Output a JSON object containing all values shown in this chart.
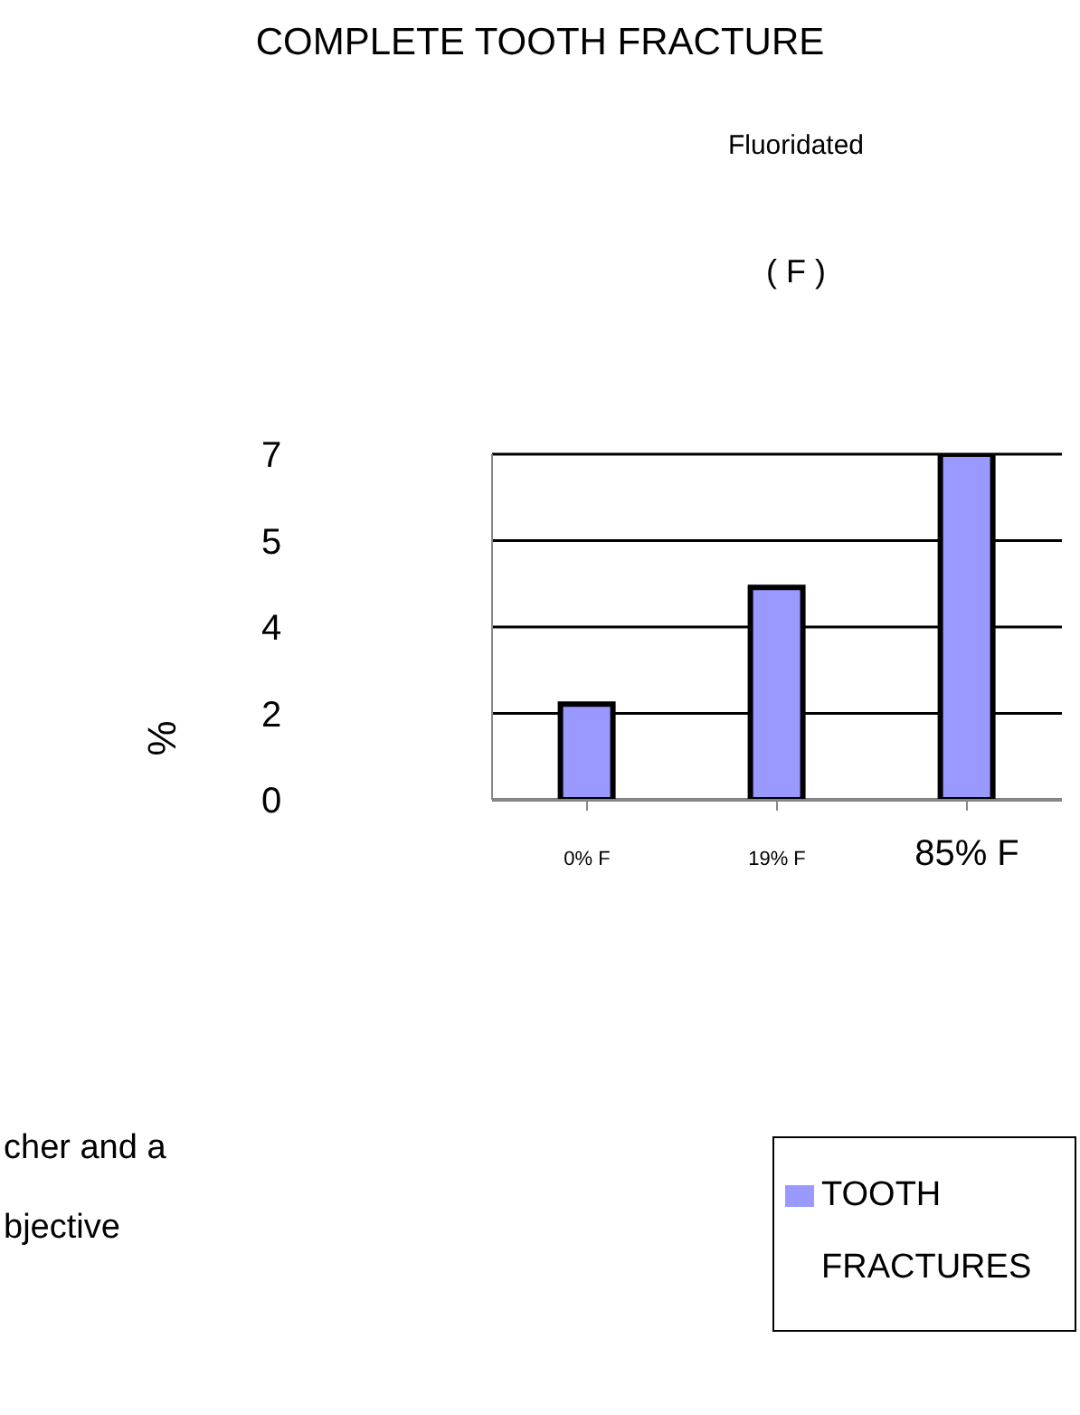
{
  "chart_data": {
    "type": "bar",
    "title": "COMPLETE TOOTH FRACTURE",
    "subtitle": "Fluoridated",
    "ylabel": "%",
    "categories": [
      "0% F",
      "19% F",
      "85% F"
    ],
    "series": [
      {
        "name": "TOOTH FRACTURES",
        "color": "#9999ff",
        "values": [
          1.94,
          4.3,
          7
        ]
      }
    ],
    "ylim": [
      0,
      7
    ],
    "yticks": [
      {
        "value": 0,
        "label": "0"
      },
      {
        "value": 1.75,
        "label": "2"
      },
      {
        "value": 3.5,
        "label": "4"
      },
      {
        "value": 5.25,
        "label": "5"
      },
      {
        "value": 7,
        "label": "7"
      }
    ],
    "grid": "y",
    "legend": "bottom right",
    "annotations": [
      "( F )",
      "cher and a",
      "bjective"
    ]
  }
}
